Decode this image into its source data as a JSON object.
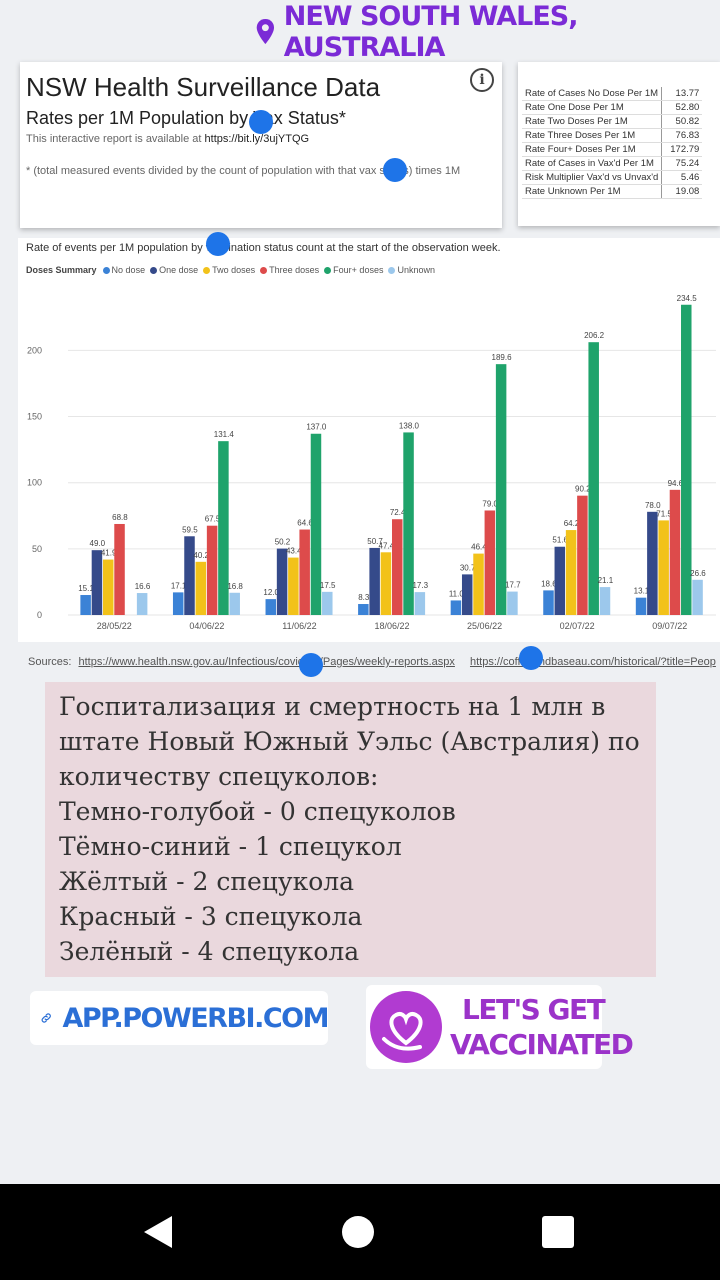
{
  "location": {
    "label": "NEW SOUTH WALES, AUSTRALIA"
  },
  "report": {
    "title": "NSW Health Surveillance Data",
    "subtitle": "Rates per 1M Population by Vax Status*",
    "avail_prefix": "This interactive report is available at",
    "avail_link": "https://bit.ly/3ujYTQG",
    "note": "* (total measured events divided by the count of population with that vax status) times 1M"
  },
  "stats": [
    {
      "label": "Rate of Cases No Dose Per 1M",
      "value": "13.77"
    },
    {
      "label": "Rate One Dose Per 1M",
      "value": "52.80"
    },
    {
      "label": "Rate Two Doses Per 1M",
      "value": "50.82"
    },
    {
      "label": "Rate Three Doses Per 1M",
      "value": "76.83"
    },
    {
      "label": "Rate Four+ Doses Per 1M",
      "value": "172.79"
    },
    {
      "label": "Rate of Cases in Vax'd Per 1M",
      "value": "75.24"
    },
    {
      "label": "Risk Multiplier Vax'd vs Unvax'd",
      "value": "5.46"
    },
    {
      "label": "Rate Unknown Per 1M",
      "value": "19.08"
    }
  ],
  "chart_title": "Rate of events per 1M population by vaccination status count at the start of the observation week.",
  "legend_title": "Doses Summary",
  "colors": {
    "no_dose": "#3b82d6",
    "one_dose": "#354a8a",
    "two_doses": "#f2c21a",
    "three_doses": "#dd4b4b",
    "four_doses": "#1fa36b",
    "unknown": "#9cc8ec"
  },
  "chart_data": {
    "type": "bar",
    "categories": [
      "28/05/22",
      "04/06/22",
      "11/06/22",
      "18/06/22",
      "25/06/22",
      "02/07/22",
      "09/07/22"
    ],
    "series": [
      {
        "name": "No dose",
        "values": [
          15.1,
          17.1,
          12.0,
          8.3,
          11.0,
          18.6,
          13.1
        ]
      },
      {
        "name": "One dose",
        "values": [
          49.0,
          59.5,
          50.2,
          50.7,
          30.7,
          51.6,
          78.0
        ]
      },
      {
        "name": "Two doses",
        "values": [
          41.9,
          40.2,
          43.4,
          47.4,
          46.4,
          64.2,
          71.5
        ]
      },
      {
        "name": "Three doses",
        "values": [
          68.8,
          67.5,
          64.6,
          72.4,
          79.0,
          90.2,
          94.6
        ]
      },
      {
        "name": "Four+ doses",
        "values": [
          null,
          131.4,
          137.0,
          138.0,
          189.6,
          206.2,
          234.5
        ]
      },
      {
        "name": "Unknown",
        "values": [
          16.6,
          16.8,
          17.5,
          17.3,
          17.7,
          21.1,
          26.6
        ]
      }
    ],
    "labels": [
      [
        "15.1",
        "49.0",
        "41.9",
        "68.8",
        "",
        "16.6"
      ],
      [
        "17.1",
        "59.5",
        "40.2",
        "67.5",
        "131.4",
        "16.8"
      ],
      [
        "12.0",
        "50.2",
        "43.4",
        "64.6",
        "137.0",
        "17.5"
      ],
      [
        "8.3",
        "50.7",
        "47.4",
        "72.4",
        "138.0",
        "17.3"
      ],
      [
        "11.0",
        "30.7",
        "46.4",
        "79.0",
        "189.6",
        "17.7"
      ],
      [
        "18.6",
        "51.6",
        "64.2",
        "90.2",
        "206.2",
        "21.1"
      ],
      [
        "13.1",
        "78.0",
        "71.5",
        "94.6",
        "234.5",
        "26.6"
      ]
    ],
    "yticks": [
      "0",
      "50",
      "100",
      "150",
      "200"
    ],
    "ylim": [
      0,
      250
    ]
  },
  "sources": {
    "label": "Sources:",
    "link1": "https://www.health.nsw.gov.au/Infectious/covid-19/Pages/weekly-reports.aspx",
    "link2": "https://coffeeandbaseau.com/historical/?title=Peop"
  },
  "ru_text": [
    "Госпитализация и смертность на 1 млн в",
    "штате Новый Южный Уэльс (Австралия) по",
    "количеству спецуколов:",
    "Темно-голубой - 0 спецуколов",
    "Тёмно-синий - 1 спецукол",
    "Жёлтый - 2 спецукола",
    "Красный - 3 спецукола",
    "Зелёный - 4 спецукола"
  ],
  "link_sticker": {
    "label": "APP.POWERBI.COM"
  },
  "vax_sticker": {
    "line1": "LET'S GET",
    "line2": "VACCINATED"
  }
}
